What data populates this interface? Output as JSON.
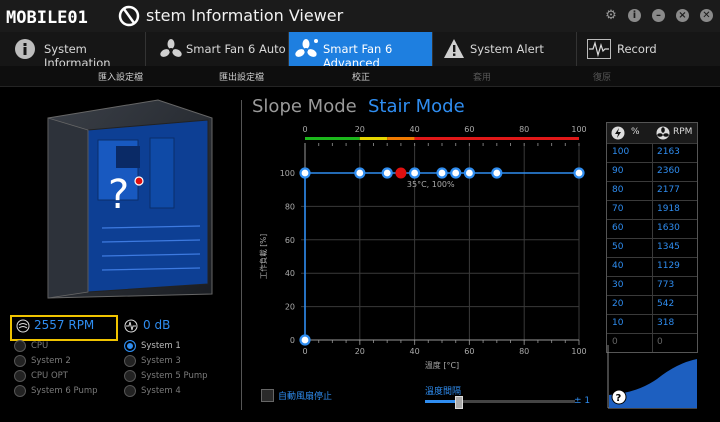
{
  "app": {
    "logo": "MOBILE01",
    "title": "stem Information Viewer"
  },
  "tabs": [
    {
      "label": "System Information",
      "icon": "info-icon",
      "active": false
    },
    {
      "label": "Smart Fan 6 Auto",
      "icon": "fan-icon",
      "active": false
    },
    {
      "label": "Smart Fan 6 Advanced",
      "icon": "fan-advanced-icon",
      "active": true
    },
    {
      "label": "System Alert",
      "icon": "warning-icon",
      "active": false
    },
    {
      "label": "Record",
      "icon": "waveform-icon",
      "active": false
    }
  ],
  "toolbar": {
    "import": "匯入設定檔",
    "export": "匯出設定檔",
    "calibrate": "校正",
    "apply": "套用",
    "undo": "復原"
  },
  "fan_status": {
    "rpm": "2557 RPM",
    "noise": "0 dB"
  },
  "fan_sources": [
    {
      "label": "CPU",
      "selected": false
    },
    {
      "label": "System 2",
      "selected": false
    },
    {
      "label": "CPU OPT",
      "selected": false
    },
    {
      "label": "System 6 Pump",
      "selected": false
    }
  ],
  "fan_sources_2": [
    {
      "label": "System 1",
      "selected": true
    },
    {
      "label": "System 3",
      "selected": false
    },
    {
      "label": "System 5 Pump",
      "selected": false
    },
    {
      "label": "System 4",
      "selected": false
    }
  ],
  "case_placeholder": "?",
  "modes": {
    "slope": "Slope Mode",
    "stair": "Stair Mode"
  },
  "chart_data": {
    "type": "line",
    "ylabel": "工作負載 [%]",
    "xlabel": "溫度 [°C]",
    "xlim": [
      0,
      100
    ],
    "ylim": [
      0,
      100
    ],
    "x_ticks": [
      0,
      20,
      40,
      60,
      80,
      100
    ],
    "y_ticks": [
      0,
      20,
      40,
      60,
      80,
      100
    ],
    "top_ticks": [
      0,
      20,
      40,
      60,
      80,
      100
    ],
    "points": [
      [
        0,
        0
      ],
      [
        0,
        100
      ],
      [
        20,
        100
      ],
      [
        30,
        100
      ],
      [
        40,
        100
      ],
      [
        50,
        100
      ],
      [
        55,
        100
      ],
      [
        60,
        100
      ],
      [
        70,
        100
      ],
      [
        100,
        100
      ]
    ],
    "current": {
      "x": 35,
      "y": 100
    },
    "current_label": "35°C, 100%",
    "colors": {
      "line": "#2f8df0",
      "current": "#e01010",
      "grid": "#3a3a3a"
    }
  },
  "options": {
    "auto_stop": "自動風扇停止",
    "temp_interval": "溫度間隔",
    "interval_value": "± 1",
    "slider_level": 0.22
  },
  "table": {
    "headers": [
      "%",
      "RPM"
    ],
    "header_icons": [
      "power-icon",
      "fan-icon"
    ],
    "rows": [
      [
        "100",
        "2163"
      ],
      [
        "90",
        "2360"
      ],
      [
        "80",
        "2177"
      ],
      [
        "70",
        "1918"
      ],
      [
        "60",
        "1630"
      ],
      [
        "50",
        "1345"
      ],
      [
        "40",
        "1129"
      ],
      [
        "30",
        "773"
      ],
      [
        "20",
        "542"
      ],
      [
        "10",
        "318"
      ],
      [
        "0",
        "0"
      ]
    ]
  },
  "preview_placeholder": "?"
}
